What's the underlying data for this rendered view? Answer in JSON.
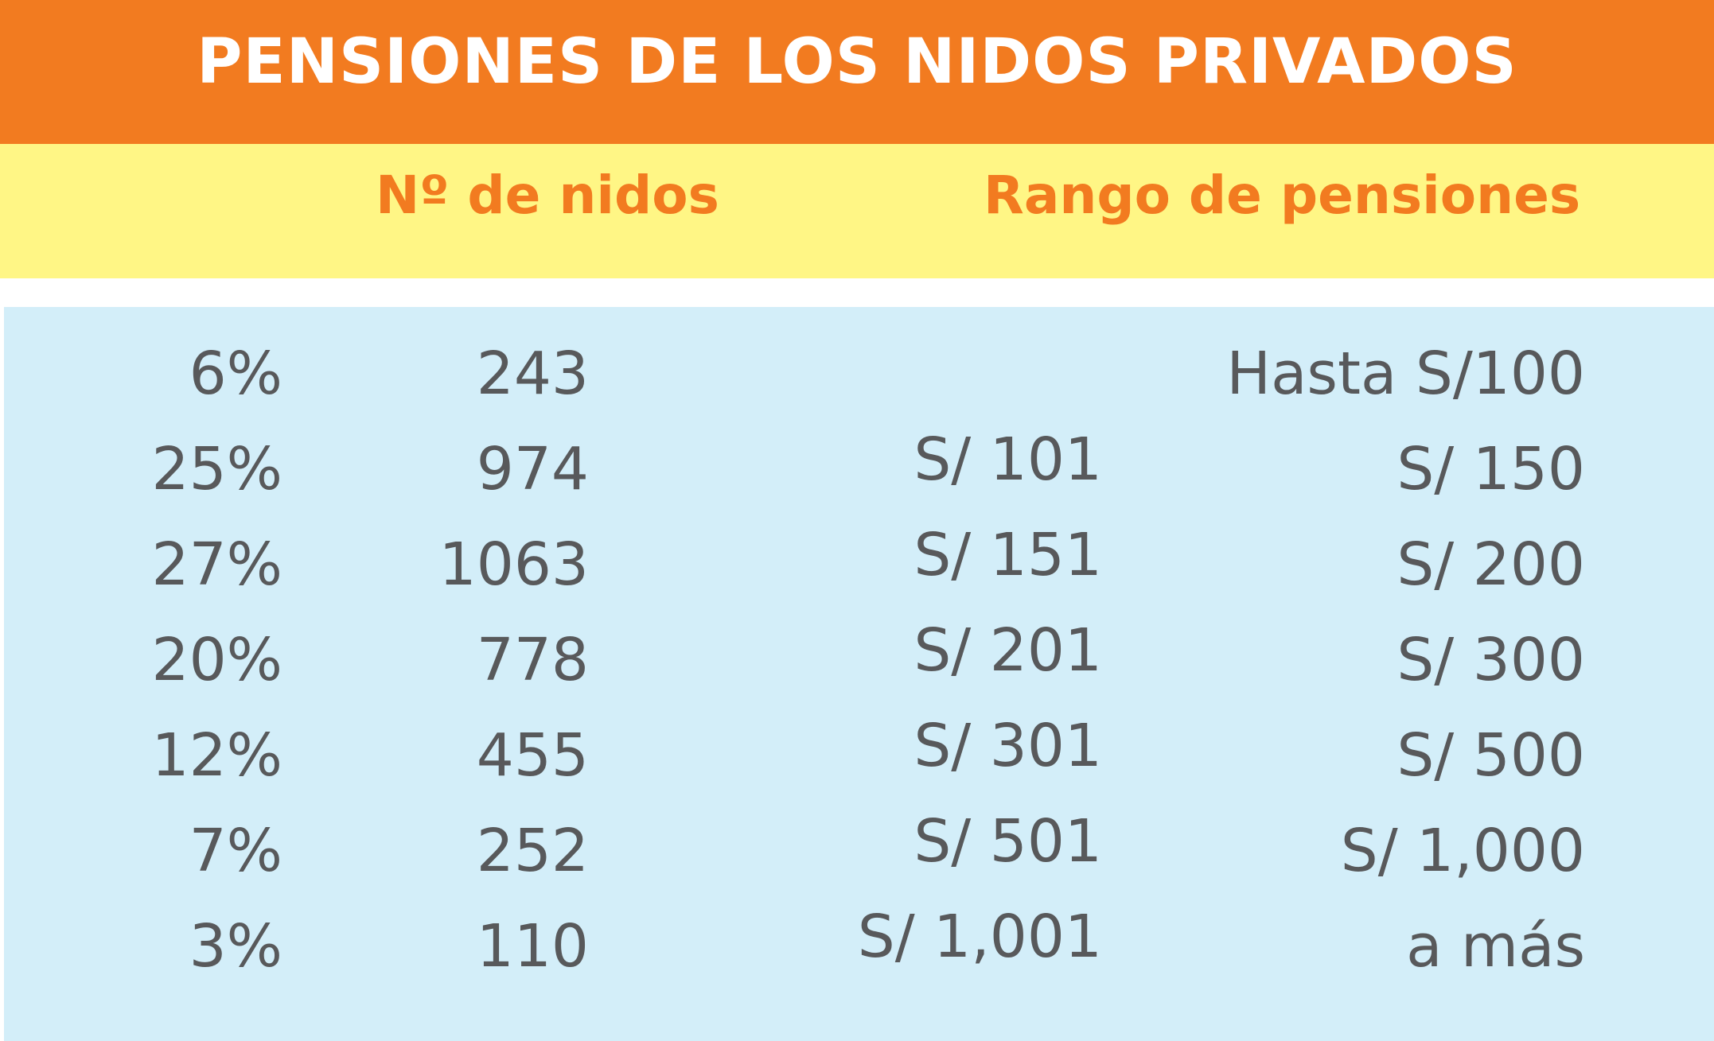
{
  "chart_data": {
    "type": "table",
    "title": "PENSIONES DE LOS NIDOS PRIVADOS",
    "columns": [
      "Nº de nidos",
      "Rango de pensiones"
    ],
    "rows": [
      {
        "percent": "6%",
        "count": "243",
        "from": "",
        "to": "Hasta S/100"
      },
      {
        "percent": "25%",
        "count": "974",
        "from": "S/ 101",
        "to": "S/ 150"
      },
      {
        "percent": "27%",
        "count": "1063",
        "from": "S/ 151",
        "to": "S/ 200"
      },
      {
        "percent": "20%",
        "count": "778",
        "from": "S/ 201",
        "to": "S/ 300"
      },
      {
        "percent": "12%",
        "count": "455",
        "from": "S/ 301",
        "to": "S/ 500"
      },
      {
        "percent": "7%",
        "count": "252",
        "from": "S/ 501",
        "to": "S/ 1,000"
      },
      {
        "percent": "3%",
        "count": "110",
        "from": "S/ 1,001",
        "to": "a más"
      }
    ]
  },
  "colors": {
    "header": "#f27b20",
    "subheader": "#fff685",
    "body": "#d3eef9",
    "title_text": "#ffffff",
    "column_head_text": "#f27b20",
    "cell_text": "#58595b"
  }
}
